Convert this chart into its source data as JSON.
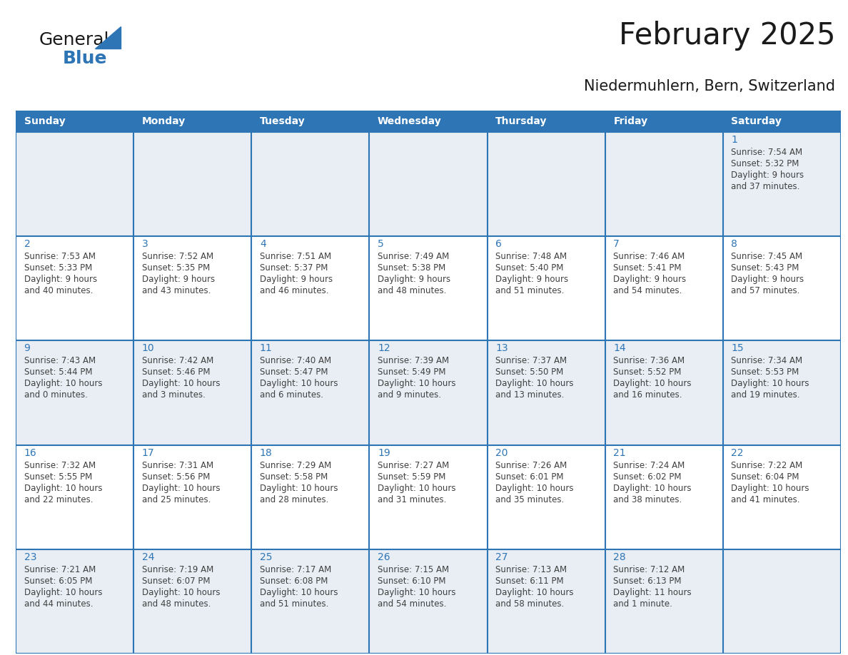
{
  "title": "February 2025",
  "subtitle": "Niedermuhlern, Bern, Switzerland",
  "header_bg": "#2E75B6",
  "header_text_color": "#FFFFFF",
  "row1_bg": "#E8EEF4",
  "row_odd_bg": "#E8EEF4",
  "row_even_bg": "#FFFFFF",
  "border_color": "#2E75B6",
  "days_of_week": [
    "Sunday",
    "Monday",
    "Tuesday",
    "Wednesday",
    "Thursday",
    "Friday",
    "Saturday"
  ],
  "logo_general_color": "#1a1a1a",
  "logo_blue_color": "#2E75B6",
  "title_color": "#1a1a1a",
  "subtitle_color": "#1a1a1a",
  "calendar": [
    [
      null,
      null,
      null,
      null,
      null,
      null,
      {
        "day": 1,
        "sunrise": "7:54 AM",
        "sunset": "5:32 PM",
        "daylight_line1": "Daylight: 9 hours",
        "daylight_line2": "and 37 minutes."
      }
    ],
    [
      {
        "day": 2,
        "sunrise": "7:53 AM",
        "sunset": "5:33 PM",
        "daylight_line1": "Daylight: 9 hours",
        "daylight_line2": "and 40 minutes."
      },
      {
        "day": 3,
        "sunrise": "7:52 AM",
        "sunset": "5:35 PM",
        "daylight_line1": "Daylight: 9 hours",
        "daylight_line2": "and 43 minutes."
      },
      {
        "day": 4,
        "sunrise": "7:51 AM",
        "sunset": "5:37 PM",
        "daylight_line1": "Daylight: 9 hours",
        "daylight_line2": "and 46 minutes."
      },
      {
        "day": 5,
        "sunrise": "7:49 AM",
        "sunset": "5:38 PM",
        "daylight_line1": "Daylight: 9 hours",
        "daylight_line2": "and 48 minutes."
      },
      {
        "day": 6,
        "sunrise": "7:48 AM",
        "sunset": "5:40 PM",
        "daylight_line1": "Daylight: 9 hours",
        "daylight_line2": "and 51 minutes."
      },
      {
        "day": 7,
        "sunrise": "7:46 AM",
        "sunset": "5:41 PM",
        "daylight_line1": "Daylight: 9 hours",
        "daylight_line2": "and 54 minutes."
      },
      {
        "day": 8,
        "sunrise": "7:45 AM",
        "sunset": "5:43 PM",
        "daylight_line1": "Daylight: 9 hours",
        "daylight_line2": "and 57 minutes."
      }
    ],
    [
      {
        "day": 9,
        "sunrise": "7:43 AM",
        "sunset": "5:44 PM",
        "daylight_line1": "Daylight: 10 hours",
        "daylight_line2": "and 0 minutes."
      },
      {
        "day": 10,
        "sunrise": "7:42 AM",
        "sunset": "5:46 PM",
        "daylight_line1": "Daylight: 10 hours",
        "daylight_line2": "and 3 minutes."
      },
      {
        "day": 11,
        "sunrise": "7:40 AM",
        "sunset": "5:47 PM",
        "daylight_line1": "Daylight: 10 hours",
        "daylight_line2": "and 6 minutes."
      },
      {
        "day": 12,
        "sunrise": "7:39 AM",
        "sunset": "5:49 PM",
        "daylight_line1": "Daylight: 10 hours",
        "daylight_line2": "and 9 minutes."
      },
      {
        "day": 13,
        "sunrise": "7:37 AM",
        "sunset": "5:50 PM",
        "daylight_line1": "Daylight: 10 hours",
        "daylight_line2": "and 13 minutes."
      },
      {
        "day": 14,
        "sunrise": "7:36 AM",
        "sunset": "5:52 PM",
        "daylight_line1": "Daylight: 10 hours",
        "daylight_line2": "and 16 minutes."
      },
      {
        "day": 15,
        "sunrise": "7:34 AM",
        "sunset": "5:53 PM",
        "daylight_line1": "Daylight: 10 hours",
        "daylight_line2": "and 19 minutes."
      }
    ],
    [
      {
        "day": 16,
        "sunrise": "7:32 AM",
        "sunset": "5:55 PM",
        "daylight_line1": "Daylight: 10 hours",
        "daylight_line2": "and 22 minutes."
      },
      {
        "day": 17,
        "sunrise": "7:31 AM",
        "sunset": "5:56 PM",
        "daylight_line1": "Daylight: 10 hours",
        "daylight_line2": "and 25 minutes."
      },
      {
        "day": 18,
        "sunrise": "7:29 AM",
        "sunset": "5:58 PM",
        "daylight_line1": "Daylight: 10 hours",
        "daylight_line2": "and 28 minutes."
      },
      {
        "day": 19,
        "sunrise": "7:27 AM",
        "sunset": "5:59 PM",
        "daylight_line1": "Daylight: 10 hours",
        "daylight_line2": "and 31 minutes."
      },
      {
        "day": 20,
        "sunrise": "7:26 AM",
        "sunset": "6:01 PM",
        "daylight_line1": "Daylight: 10 hours",
        "daylight_line2": "and 35 minutes."
      },
      {
        "day": 21,
        "sunrise": "7:24 AM",
        "sunset": "6:02 PM",
        "daylight_line1": "Daylight: 10 hours",
        "daylight_line2": "and 38 minutes."
      },
      {
        "day": 22,
        "sunrise": "7:22 AM",
        "sunset": "6:04 PM",
        "daylight_line1": "Daylight: 10 hours",
        "daylight_line2": "and 41 minutes."
      }
    ],
    [
      {
        "day": 23,
        "sunrise": "7:21 AM",
        "sunset": "6:05 PM",
        "daylight_line1": "Daylight: 10 hours",
        "daylight_line2": "and 44 minutes."
      },
      {
        "day": 24,
        "sunrise": "7:19 AM",
        "sunset": "6:07 PM",
        "daylight_line1": "Daylight: 10 hours",
        "daylight_line2": "and 48 minutes."
      },
      {
        "day": 25,
        "sunrise": "7:17 AM",
        "sunset": "6:08 PM",
        "daylight_line1": "Daylight: 10 hours",
        "daylight_line2": "and 51 minutes."
      },
      {
        "day": 26,
        "sunrise": "7:15 AM",
        "sunset": "6:10 PM",
        "daylight_line1": "Daylight: 10 hours",
        "daylight_line2": "and 54 minutes."
      },
      {
        "day": 27,
        "sunrise": "7:13 AM",
        "sunset": "6:11 PM",
        "daylight_line1": "Daylight: 10 hours",
        "daylight_line2": "and 58 minutes."
      },
      {
        "day": 28,
        "sunrise": "7:12 AM",
        "sunset": "6:13 PM",
        "daylight_line1": "Daylight: 11 hours",
        "daylight_line2": "and 1 minute."
      },
      null
    ]
  ],
  "text_color_day": "#2E75B6",
  "text_color_info": "#404040",
  "font_size_day": 10,
  "font_size_info": 8.5,
  "font_size_header": 10,
  "font_size_title": 30,
  "font_size_subtitle": 15
}
